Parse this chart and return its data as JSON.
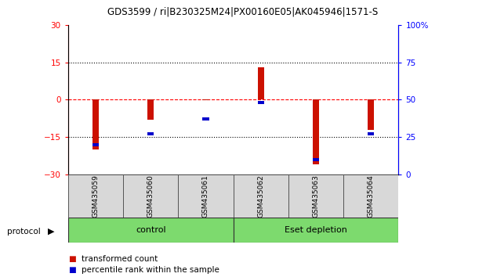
{
  "title": "GDS3599 / ri|B230325M24|PX00160E05|AK045946|1571-S",
  "samples": [
    "GSM435059",
    "GSM435060",
    "GSM435061",
    "GSM435062",
    "GSM435063",
    "GSM435064"
  ],
  "red_values": [
    -20.0,
    -8.0,
    -0.3,
    13.0,
    -26.0,
    -12.0
  ],
  "blue_values_pct": [
    20,
    27,
    37,
    48,
    10,
    27
  ],
  "ylim_left": [
    -30,
    30
  ],
  "ylim_right": [
    0,
    100
  ],
  "yticks_left": [
    -30,
    -15,
    0,
    15,
    30
  ],
  "yticks_right": [
    0,
    25,
    50,
    75,
    100
  ],
  "ytick_labels_right": [
    "0",
    "25",
    "50",
    "75",
    "100%"
  ],
  "hlines": [
    15,
    0,
    -15
  ],
  "hline_styles": [
    "dotted",
    "dashed",
    "dotted"
  ],
  "hline_colors": [
    "black",
    "red",
    "black"
  ],
  "bar_color": "#cc1100",
  "dot_color": "#0000cc",
  "control_label": "control",
  "eset_label": "Eset depletion",
  "legend1": "transformed count",
  "legend2": "percentile rank within the sample",
  "protocol_label": "protocol",
  "bg_color": "#ffffff",
  "panel_bg": "#d8d8d8",
  "group_bg": "#7dda6e"
}
